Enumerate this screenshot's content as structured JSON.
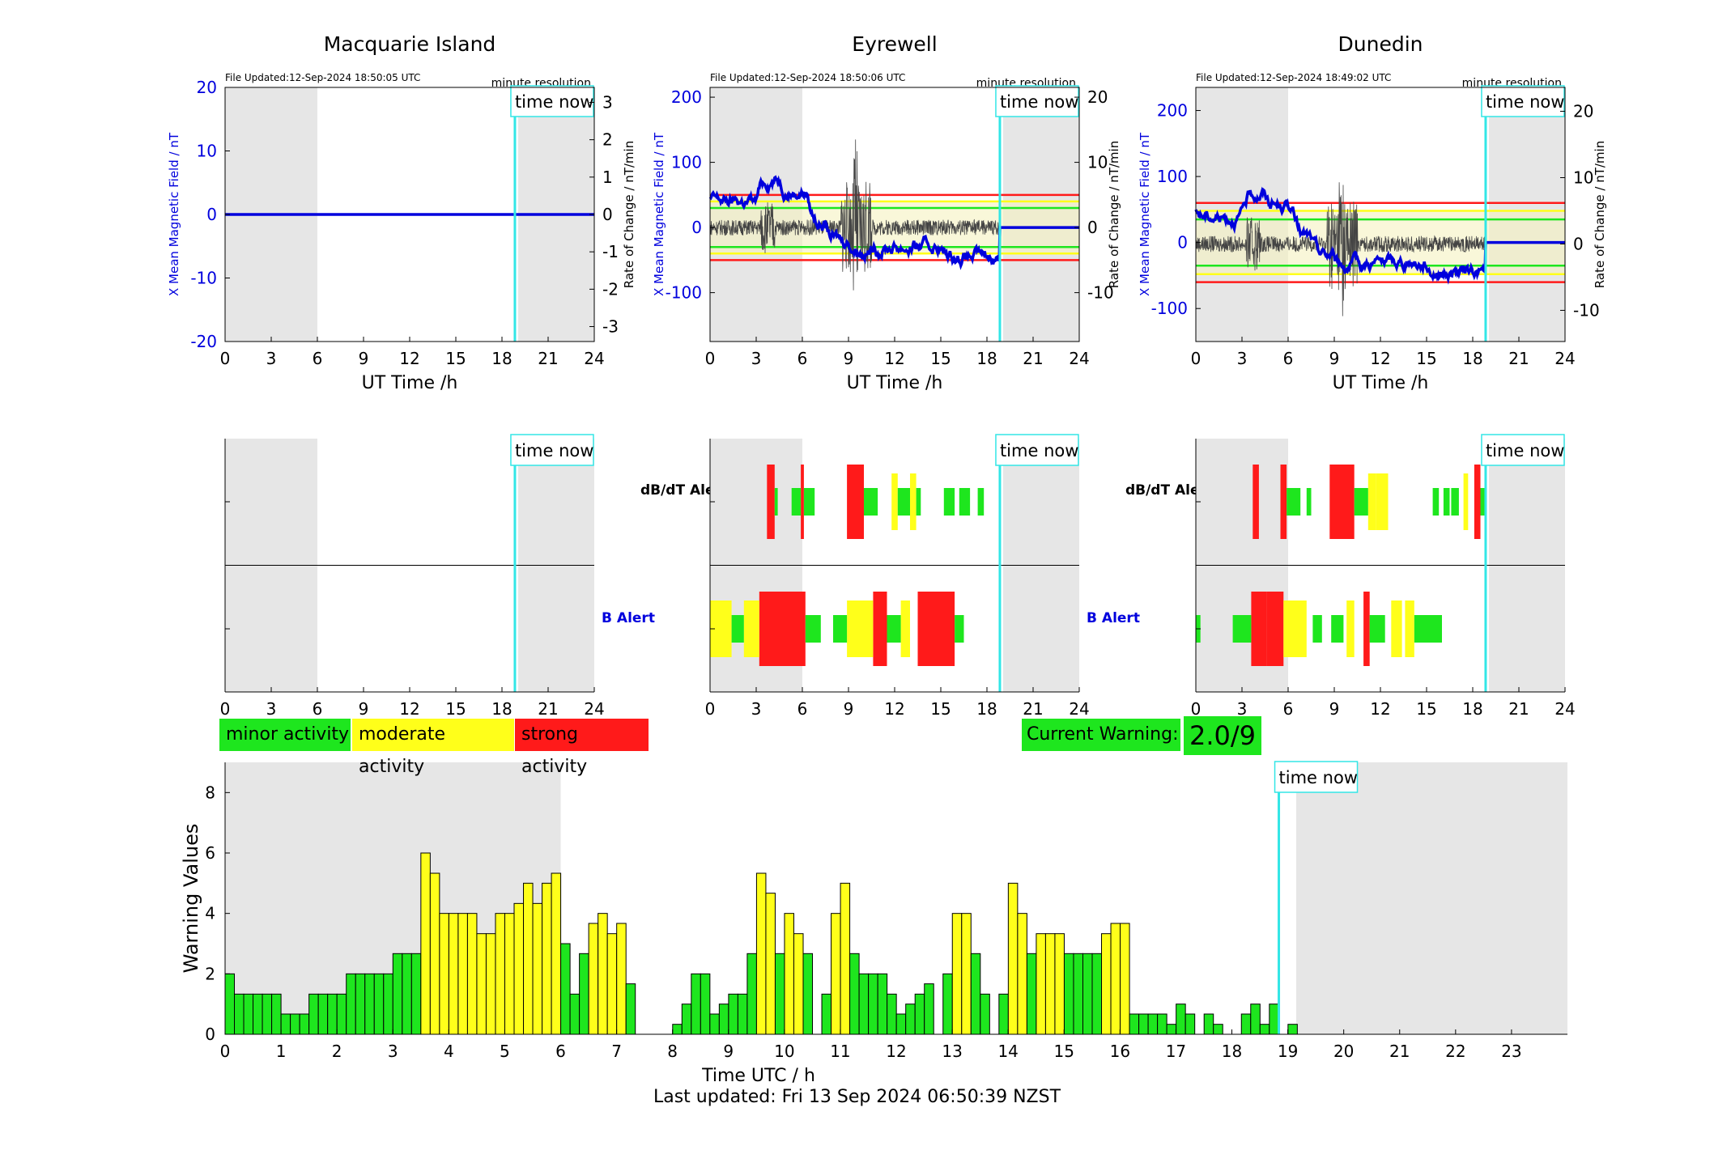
{
  "colors": {
    "minor": "#1ee61e",
    "moderate": "#ffff1a",
    "strong": "#ff1a1a",
    "timeNow": "#33e6e6",
    "blueSeries": "#0000dd",
    "blackSeries": "#000000",
    "shade": "#e6e6e6"
  },
  "time_now_label": "time now",
  "time_now_hours": 18.84,
  "stations": [
    {
      "name": "Macquarie Island",
      "file_updated": "File Updated:12-Sep-2024 18:50:05 UTC",
      "resolution": "minute resolution",
      "left_ylabel": "X Mean Magnetic Field / nT",
      "right_ylabel": "Rate of Change / nT/min",
      "xlabel": "UT Time /h",
      "ylim": [
        -20,
        20
      ],
      "yticks": [
        "20",
        "10",
        "0",
        "-10",
        "-20"
      ],
      "ytick_values": [
        20,
        10,
        0,
        -10,
        -20
      ],
      "y2lim": [
        -3.4,
        3.4
      ],
      "y2ticks": [
        "3",
        "2",
        "1",
        "0",
        "-1",
        "-2",
        "-3"
      ],
      "y2tick_values": [
        3,
        2,
        1,
        0,
        -1,
        -2,
        -3
      ],
      "thresholds": []
    },
    {
      "name": "Eyrewell",
      "file_updated": "File Updated:12-Sep-2024 18:50:06 UTC",
      "resolution": "minute resolution",
      "left_ylabel": "X Mean Magnetic Field / nT",
      "right_ylabel": "Rate of Change / nT/min",
      "xlabel": "UT Time /h",
      "ylim": [
        -175,
        215
      ],
      "yticks": [
        "200",
        "100",
        "0",
        "-100"
      ],
      "ytick_values": [
        200,
        100,
        0,
        -100
      ],
      "y2lim": [
        -17.5,
        21.5
      ],
      "y2ticks": [
        "20",
        "10",
        "0",
        "-10"
      ],
      "y2tick_values": [
        20,
        10,
        0,
        -10
      ],
      "thresholds": [
        {
          "v": 50,
          "c": "strong"
        },
        {
          "v": -50,
          "c": "strong"
        },
        {
          "v": 40,
          "c": "moderate"
        },
        {
          "v": -40,
          "c": "moderate"
        },
        {
          "v": 30,
          "c": "minor"
        },
        {
          "v": -30,
          "c": "minor"
        }
      ]
    },
    {
      "name": "Dunedin",
      "file_updated": "File Updated:12-Sep-2024 18:49:02 UTC",
      "resolution": "minute resolution",
      "left_ylabel": "X Mean Magnetic Field / nT",
      "right_ylabel": "Rate of Change / nT/min",
      "xlabel": "UT Time /h",
      "ylim": [
        -150,
        235
      ],
      "yticks": [
        "200",
        "100",
        "0",
        "-100"
      ],
      "ytick_values": [
        200,
        100,
        0,
        -100
      ],
      "y2lim": [
        -14.7,
        23.6
      ],
      "y2ticks": [
        "20",
        "10",
        "0",
        "-10"
      ],
      "y2tick_values": [
        20,
        10,
        0,
        -10
      ],
      "thresholds": [
        {
          "v": 60,
          "c": "strong"
        },
        {
          "v": -60,
          "c": "strong"
        },
        {
          "v": 48,
          "c": "moderate"
        },
        {
          "v": -48,
          "c": "moderate"
        },
        {
          "v": 35,
          "c": "minor"
        },
        {
          "v": -35,
          "c": "minor"
        }
      ]
    }
  ],
  "alert_labels": {
    "dbdt": "dB/dT Alert",
    "b": "B Alert"
  },
  "alert_xticks": [
    "0",
    "3",
    "6",
    "9",
    "12",
    "15",
    "18",
    "21",
    "24"
  ],
  "alerts": {
    "eyrewell_dbdt": [
      [
        3.7,
        4.2,
        "strong"
      ],
      [
        4.2,
        4.4,
        "minor"
      ],
      [
        5.3,
        5.9,
        "minor"
      ],
      [
        5.9,
        6.1,
        "strong"
      ],
      [
        6.1,
        6.8,
        "minor"
      ],
      [
        8.9,
        10.0,
        "strong"
      ],
      [
        10.0,
        10.9,
        "minor"
      ],
      [
        11.8,
        12.2,
        "moderate"
      ],
      [
        12.2,
        13.0,
        "minor"
      ],
      [
        13.0,
        13.4,
        "moderate"
      ],
      [
        13.4,
        13.7,
        "minor"
      ],
      [
        15.2,
        15.9,
        "minor"
      ],
      [
        16.2,
        16.9,
        "minor"
      ],
      [
        17.4,
        17.8,
        "minor"
      ]
    ],
    "eyrewell_b": [
      [
        0.0,
        1.4,
        "moderate"
      ],
      [
        1.4,
        2.2,
        "minor"
      ],
      [
        2.2,
        3.2,
        "moderate"
      ],
      [
        3.2,
        6.2,
        "strong"
      ],
      [
        6.2,
        7.2,
        "minor"
      ],
      [
        8.0,
        8.9,
        "minor"
      ],
      [
        8.9,
        10.6,
        "moderate"
      ],
      [
        10.6,
        11.5,
        "strong"
      ],
      [
        11.5,
        12.4,
        "minor"
      ],
      [
        12.4,
        13.0,
        "moderate"
      ],
      [
        13.5,
        14.0,
        "strong"
      ],
      [
        14.0,
        15.9,
        "strong"
      ],
      [
        15.9,
        16.5,
        "minor"
      ]
    ],
    "dunedin_dbdt": [
      [
        3.7,
        4.1,
        "strong"
      ],
      [
        5.5,
        5.9,
        "strong"
      ],
      [
        5.9,
        6.8,
        "minor"
      ],
      [
        7.2,
        7.5,
        "minor"
      ],
      [
        8.7,
        10.3,
        "strong"
      ],
      [
        10.3,
        11.2,
        "minor"
      ],
      [
        11.2,
        11.7,
        "moderate"
      ],
      [
        11.7,
        12.5,
        "moderate"
      ],
      [
        15.4,
        15.8,
        "minor"
      ],
      [
        16.1,
        16.5,
        "minor"
      ],
      [
        16.6,
        17.1,
        "minor"
      ],
      [
        17.4,
        17.7,
        "moderate"
      ],
      [
        18.1,
        18.5,
        "strong"
      ],
      [
        18.5,
        18.9,
        "minor"
      ]
    ],
    "dunedin_b": [
      [
        0.0,
        0.3,
        "minor"
      ],
      [
        2.4,
        3.6,
        "minor"
      ],
      [
        3.6,
        4.6,
        "strong"
      ],
      [
        4.6,
        5.7,
        "strong"
      ],
      [
        5.7,
        6.5,
        "moderate"
      ],
      [
        6.5,
        7.2,
        "moderate"
      ],
      [
        7.6,
        8.2,
        "minor"
      ],
      [
        8.8,
        9.6,
        "minor"
      ],
      [
        9.8,
        10.3,
        "moderate"
      ],
      [
        10.9,
        11.3,
        "strong"
      ],
      [
        11.3,
        12.3,
        "minor"
      ],
      [
        12.7,
        13.4,
        "moderate"
      ],
      [
        13.6,
        14.2,
        "moderate"
      ],
      [
        14.2,
        16.0,
        "minor"
      ]
    ]
  },
  "legend": {
    "minor": "minor activity",
    "moderate": "moderate activity",
    "strong": "strong activity"
  },
  "current_warning": {
    "label": "Current Warning:",
    "value": "2.0/9"
  },
  "chart_data": {
    "type": "bar",
    "xlabel": "Time UTC / h",
    "ylabel": "Warning Values",
    "xticks": [
      "0",
      "1",
      "2",
      "3",
      "4",
      "5",
      "6",
      "7",
      "8",
      "9",
      "10",
      "11",
      "12",
      "13",
      "14",
      "15",
      "16",
      "17",
      "18",
      "19",
      "20",
      "21",
      "22",
      "23"
    ],
    "yticks": [
      "0",
      "2",
      "4",
      "6",
      "8"
    ],
    "ylim": [
      0,
      9
    ],
    "xlim": [
      0,
      24
    ],
    "bar_width_hours": 0.1667,
    "values": [
      2.0,
      1.33,
      1.33,
      1.33,
      1.33,
      1.33,
      0.67,
      0.67,
      0.67,
      1.33,
      1.33,
      1.33,
      1.33,
      2.0,
      2.0,
      2.0,
      2.0,
      2.0,
      2.67,
      2.67,
      2.67,
      6.0,
      5.33,
      4.0,
      4.0,
      4.0,
      4.0,
      3.33,
      3.33,
      4.0,
      4.0,
      4.33,
      5.0,
      4.33,
      5.0,
      5.33,
      3.0,
      1.33,
      2.67,
      3.67,
      4.0,
      3.33,
      3.67,
      1.67,
      0,
      0,
      0,
      0,
      0.33,
      1.0,
      2.0,
      2.0,
      0.67,
      1.0,
      1.33,
      1.33,
      2.67,
      5.33,
      4.67,
      2.67,
      4.0,
      3.33,
      2.67,
      0,
      1.33,
      4.0,
      5.0,
      2.67,
      2.0,
      2.0,
      2.0,
      1.33,
      0.67,
      1.0,
      1.33,
      1.67,
      0,
      2.0,
      4.0,
      4.0,
      2.67,
      1.33,
      0,
      1.33,
      5.0,
      4.0,
      2.67,
      3.33,
      3.33,
      3.33,
      2.67,
      2.67,
      2.67,
      2.67,
      3.33,
      3.67,
      3.67,
      0.67,
      0.67,
      0.67,
      0.67,
      0.33,
      1.0,
      0.67,
      0,
      0.67,
      0.33,
      0,
      0,
      0.67,
      1.0,
      0.33,
      1.0,
      0,
      0.33,
      0
    ],
    "last_updated": "Last updated: Fri 13 Sep 2024 06:50:39 NZST"
  }
}
